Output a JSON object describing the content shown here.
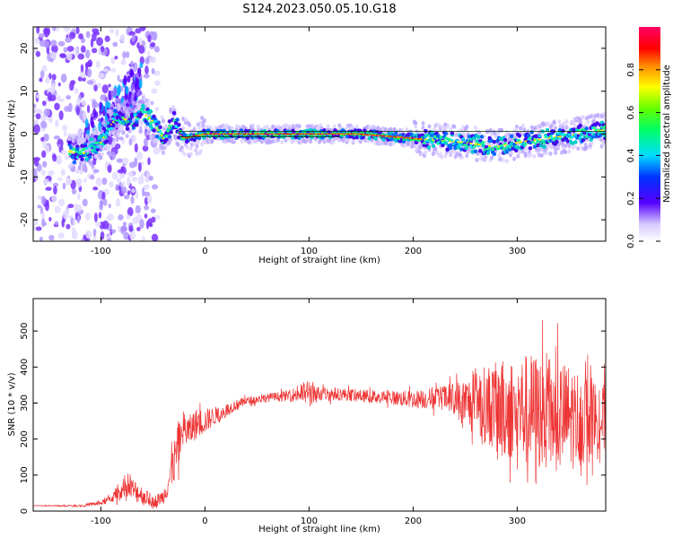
{
  "figure": {
    "title": "S124.2023.050.05.10.G18"
  },
  "chart_data": [
    {
      "type": "heatmap",
      "xlabel": "Height of straight line (km)",
      "ylabel": "Frequency (Hz)",
      "xlim": [
        -165,
        385
      ],
      "ylim": [
        -25,
        25
      ],
      "xticks": [
        -100,
        0,
        100,
        200,
        300
      ],
      "yticks": [
        -20,
        -10,
        0,
        10,
        20
      ],
      "grid": false,
      "colorbar": {
        "label": "Normalized spectral amplitude",
        "ticks": [
          0.0,
          0.2,
          0.4,
          0.6,
          0.8
        ],
        "range": [
          0.0,
          1.0
        ],
        "colormap": "rainbow (white-violet-blue-cyan-green-yellow-red-magenta)"
      },
      "ridge": {
        "description": "spectral ridge frequency vs height",
        "x": [
          -140,
          -120,
          -100,
          -85,
          -70,
          -60,
          -50,
          -40,
          -30,
          -20,
          0,
          50,
          100,
          150,
          200,
          250,
          280,
          300,
          330,
          360,
          385
        ],
        "y": [
          -3,
          -5,
          -2,
          4,
          3,
          5,
          3,
          -1,
          3,
          -1,
          0,
          0,
          0,
          0,
          -1,
          -2,
          -3,
          -2,
          -1,
          0,
          1
        ]
      },
      "colors": {
        "max_band": "#ff0055",
        "mid_band": "#00ff88",
        "low_band": "#5500ff"
      }
    },
    {
      "type": "line",
      "xlabel": "Height of straight line (km)",
      "ylabel": "SNR (10 * v/v)",
      "xlim": [
        -165,
        385
      ],
      "ylim": [
        0,
        590
      ],
      "xticks": [
        -100,
        0,
        100,
        200,
        300
      ],
      "yticks": [
        0,
        100,
        200,
        300,
        400,
        500
      ],
      "grid": false,
      "series": [
        {
          "color": "#ee3333",
          "x": [
            -165,
            -140,
            -120,
            -100,
            -90,
            -80,
            -70,
            -60,
            -50,
            -40,
            -35,
            -30,
            -25,
            -20,
            -15,
            -10,
            0,
            10,
            20,
            30,
            40,
            60,
            80,
            90,
            100,
            110,
            130,
            150,
            180,
            200,
            230,
            250,
            270,
            290,
            310,
            330,
            350,
            370,
            385
          ],
          "y": [
            15,
            15,
            15,
            22,
            35,
            55,
            60,
            45,
            25,
            40,
            80,
            130,
            190,
            230,
            220,
            240,
            250,
            265,
            280,
            295,
            305,
            315,
            320,
            325,
            330,
            325,
            325,
            320,
            315,
            310,
            315,
            300,
            295,
            285,
            280,
            270,
            260,
            255,
            250
          ],
          "envelope": [
            0,
            2,
            3,
            6,
            12,
            25,
            35,
            25,
            15,
            20,
            40,
            60,
            70,
            55,
            45,
            45,
            35,
            25,
            18,
            15,
            12,
            12,
            15,
            25,
            40,
            20,
            18,
            18,
            20,
            25,
            35,
            70,
            110,
            140,
            160,
            170,
            150,
            120,
            100
          ]
        }
      ]
    }
  ]
}
